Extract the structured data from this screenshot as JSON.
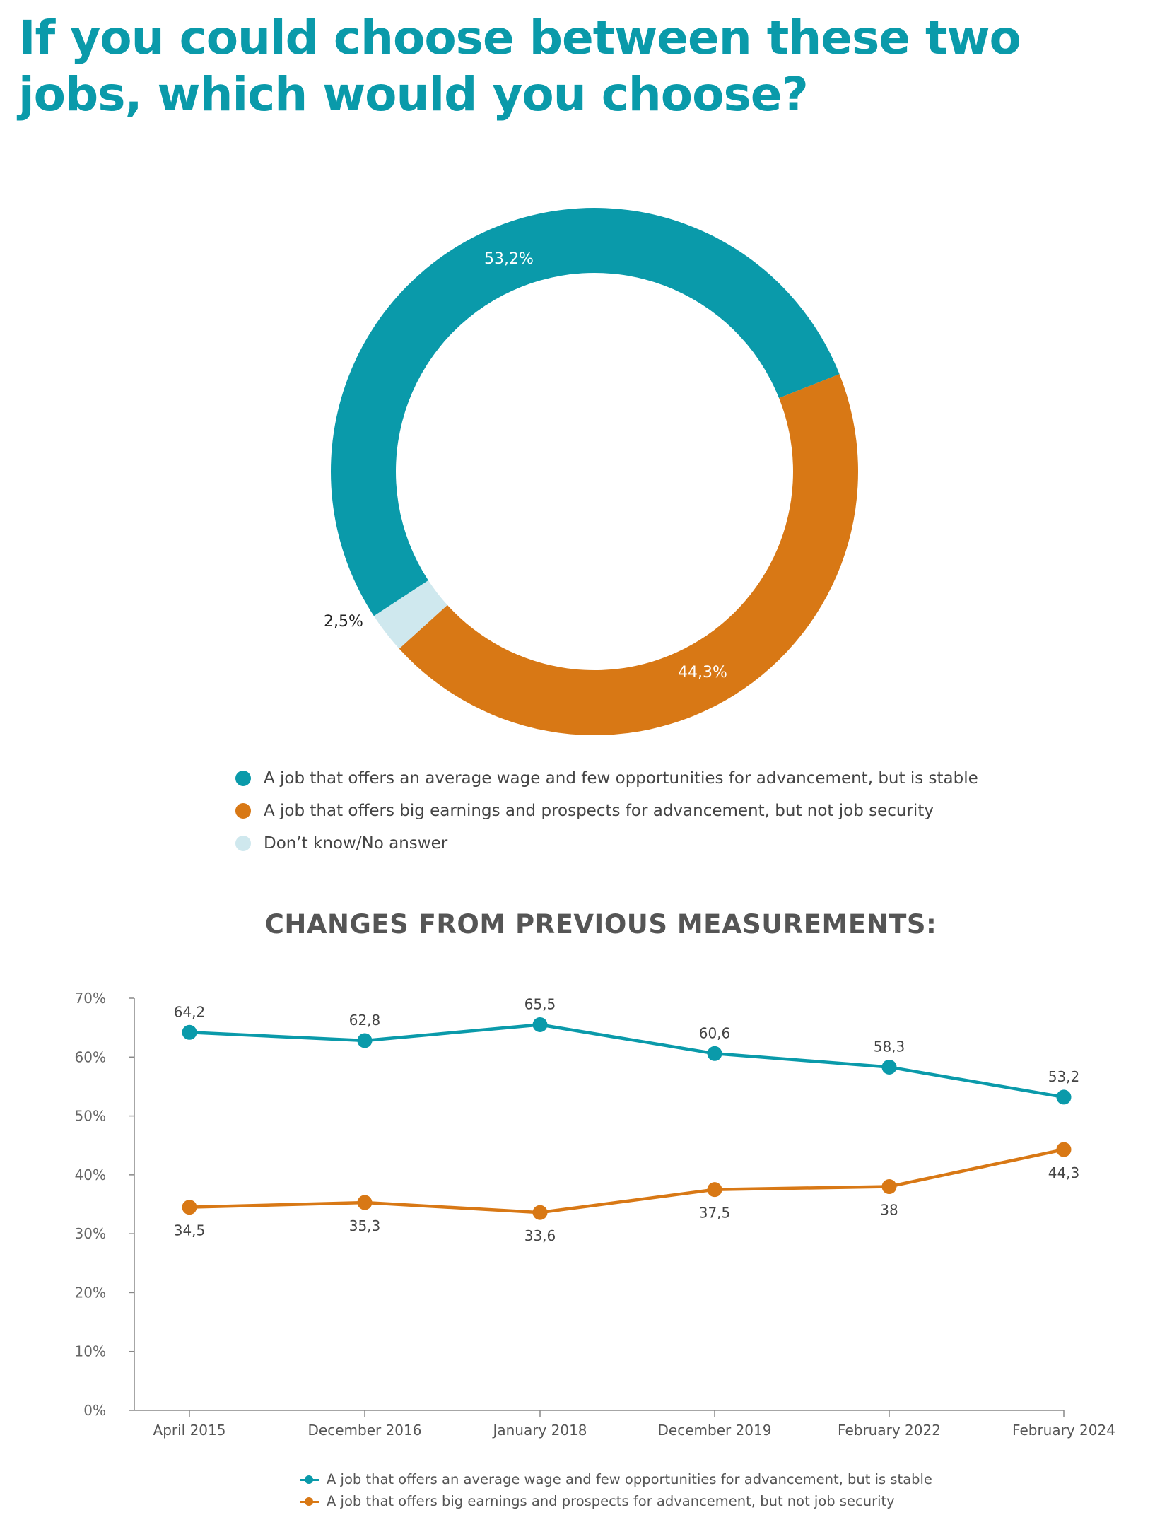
{
  "title": "If you could choose between these two jobs, which would you choose?",
  "colors": {
    "stable": "#0a9aaa",
    "earnings": "#d87815",
    "dont_know": "#cfe8ee",
    "axis": "#888888",
    "text": "#444444"
  },
  "donut_legend": [
    "A job that offers an average wage and few opportunities for advancement, but is stable",
    "A job that offers big earnings and prospects for advancement, but not job security",
    "Don’t know/No answer"
  ],
  "line_section_title": "CHANGES FROM PREVIOUS MEASUREMENTS:",
  "line_legend": [
    "A job that offers an average wage and few opportunities for advancement, but is stable",
    "A job that offers big earnings and prospects for advancement, but not job security"
  ],
  "chart_data": [
    {
      "type": "pie",
      "variant": "donut",
      "categories": [
        "A job that offers an average wage and few opportunities for advancement, but is stable",
        "A job that offers big earnings and prospects for advancement, but not job security",
        "Don’t know/No answer"
      ],
      "values": [
        53.2,
        44.3,
        2.5
      ],
      "labels": [
        "53,2%",
        "44,3%",
        "2,5%"
      ],
      "colors": [
        "#0a9aaa",
        "#d87815",
        "#cfe8ee"
      ]
    },
    {
      "type": "line",
      "title": "CHANGES FROM PREVIOUS MEASUREMENTS:",
      "categories": [
        "April 2015",
        "December 2016",
        "January 2018",
        "December 2019",
        "February 2022",
        "February 2024"
      ],
      "series": [
        {
          "name": "A job that offers an average wage and few opportunities for advancement, but is stable",
          "values": [
            64.2,
            62.8,
            65.5,
            60.6,
            58.3,
            53.2
          ],
          "labels": [
            "64,2",
            "62,8",
            "65,5",
            "60,6",
            "58,3",
            "53,2"
          ],
          "color": "#0a9aaa"
        },
        {
          "name": "A job that offers big earnings and prospects for advancement, but not job security",
          "values": [
            34.5,
            35.3,
            33.6,
            37.5,
            38,
            44.3
          ],
          "labels": [
            "34,5",
            "35,3",
            "33,6",
            "37,5",
            "38",
            "44,3"
          ],
          "color": "#d87815"
        }
      ],
      "yticks": [
        "0%",
        "10%",
        "20%",
        "30%",
        "40%",
        "50%",
        "60%",
        "70%"
      ],
      "ylim": [
        0,
        70
      ],
      "grid": false,
      "legend_position": "bottom"
    }
  ]
}
